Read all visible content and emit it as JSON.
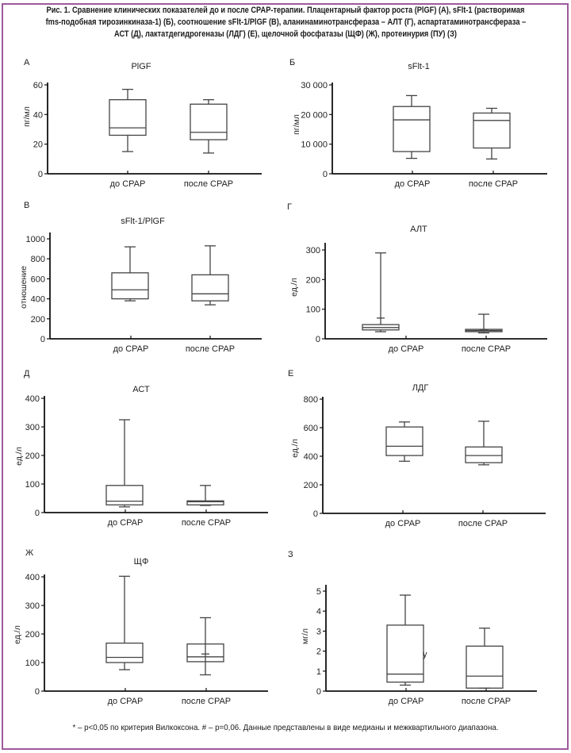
{
  "caption": {
    "lines": [
      "Рис. 1. Сравнение клинических показателей до и после CPAP-терапии. Плацентарный фактор роста (PlGF) (А), sFlt-1 (растворимая",
      "fms-подобная тирозинкиназа-1) (Б), соотношение sFlt-1/PlGF (В), аланинаминотрансфераза – АЛТ (Г), аспартатаминотрансфераза –",
      "АСТ (Д), лактатдегидрогеназы (ЛДГ) (Е), щелочной фосфатазы (ЩФ) (Ж), протеинурия (ПУ) (З)"
    ]
  },
  "footnote": "* – p<0,05 по критерия Вилкоксона. # – p=0,06. Данные представлены в виде медианы и межквартильного диапазона.",
  "colors": {
    "frame": "#9c5a9c",
    "box_stroke": "#444444",
    "axis": "#111111"
  },
  "chart_data": [
    {
      "type": "box",
      "panel": "А",
      "title": "PlGF",
      "ylabel": "пг/мл",
      "categories": [
        "до CPAP",
        "после CPAP"
      ],
      "yticks": [
        0,
        20,
        40,
        60
      ],
      "ytick_labels": [
        "0",
        "20",
        "40",
        "60"
      ],
      "ylim": [
        0,
        60
      ],
      "boxes": [
        {
          "category": "до CPAP",
          "whisker_low": 15,
          "q1": 26,
          "median": 31,
          "q3": 50,
          "whisker_high": 57
        },
        {
          "category": "после CPAP",
          "whisker_low": 14,
          "q1": 23,
          "median": 28,
          "q3": 47,
          "whisker_high": 50
        }
      ]
    },
    {
      "type": "box",
      "panel": "Б",
      "title": "sFlt-1",
      "ylabel": "пг/мл",
      "categories": [
        "до CPAP",
        "после CPAP"
      ],
      "yticks": [
        0,
        10000,
        20000,
        30000
      ],
      "ytick_labels": [
        "0",
        "10 000",
        "20 000",
        "30 000"
      ],
      "ylim": [
        0,
        30000
      ],
      "boxes": [
        {
          "category": "до CPAP",
          "whisker_low": 5200,
          "q1": 7500,
          "median": 18200,
          "q3": 22700,
          "whisker_high": 26400
        },
        {
          "category": "после CPAP",
          "whisker_low": 5000,
          "q1": 8700,
          "median": 18000,
          "q3": 20500,
          "whisker_high": 22100
        }
      ]
    },
    {
      "type": "box",
      "panel": "В",
      "title": "sFlt-1/PlGF",
      "ylabel": "отношение",
      "categories": [
        "до CPAP",
        "после CPAP"
      ],
      "yticks": [
        0,
        200,
        400,
        600,
        800,
        1000
      ],
      "ytick_labels": [
        "0",
        "200",
        "400",
        "600",
        "800",
        "1000"
      ],
      "ylim": [
        0,
        1000
      ],
      "boxes": [
        {
          "category": "до CPAP",
          "whisker_low": 380,
          "q1": 400,
          "median": 490,
          "q3": 660,
          "whisker_high": 920
        },
        {
          "category": "после CPAP",
          "whisker_low": 340,
          "q1": 380,
          "median": 450,
          "q3": 640,
          "whisker_high": 930
        }
      ]
    },
    {
      "type": "box",
      "panel": "Г",
      "title": "АЛТ",
      "ylabel": "ед./л",
      "categories": [
        "до CPAP",
        "после CPAP"
      ],
      "yticks": [
        0,
        100,
        200,
        300
      ],
      "ytick_labels": [
        "0",
        "100",
        "200",
        "300"
      ],
      "ylim": [
        0,
        300
      ],
      "boxes": [
        {
          "category": "до CPAP",
          "whisker_low": 24,
          "q1": 30,
          "median": 38,
          "q3": 48,
          "whisker_high": 290,
          "marker": 70
        },
        {
          "category": "после CPAP",
          "whisker_low": 20,
          "q1": 24,
          "median": 28,
          "q3": 32,
          "whisker_high": 83,
          "marker": 31
        }
      ]
    },
    {
      "type": "box",
      "panel": "Д",
      "title": "АСТ",
      "ylabel": "ед./л",
      "categories": [
        "до CPAP",
        "после CPAP"
      ],
      "yticks": [
        0,
        100,
        200,
        300,
        400
      ],
      "ytick_labels": [
        "0",
        "100",
        "200",
        "300",
        "400"
      ],
      "ylim": [
        0,
        400
      ],
      "boxes": [
        {
          "category": "до CPAP",
          "whisker_low": 20,
          "q1": 27,
          "median": 40,
          "q3": 95,
          "whisker_high": 325
        },
        {
          "category": "после CPAP",
          "whisker_low": 25,
          "q1": 27,
          "median": 38,
          "q3": 41,
          "whisker_high": 95
        }
      ]
    },
    {
      "type": "box",
      "panel": "Е",
      "title": "ЛДГ",
      "ylabel": "ед./л",
      "categories": [
        "до CPAP",
        "после CPAP"
      ],
      "yticks": [
        0,
        200,
        400,
        600,
        800
      ],
      "ytick_labels": [
        "0",
        "200",
        "400",
        "600",
        "800"
      ],
      "ylim": [
        0,
        800
      ],
      "boxes": [
        {
          "category": "до CPAP",
          "whisker_low": 365,
          "q1": 405,
          "median": 470,
          "q3": 605,
          "whisker_high": 640
        },
        {
          "category": "после CPAP",
          "whisker_low": 340,
          "q1": 355,
          "median": 405,
          "q3": 465,
          "whisker_high": 645
        }
      ]
    },
    {
      "type": "box",
      "panel": "Ж",
      "title": "ЩФ",
      "ylabel": "ед./л",
      "categories": [
        "до CPAP",
        "после CPAP"
      ],
      "yticks": [
        0,
        100,
        200,
        300,
        400
      ],
      "ytick_labels": [
        "0",
        "100",
        "200",
        "300",
        "400"
      ],
      "ylim": [
        0,
        400
      ],
      "boxes": [
        {
          "category": "до CPAP",
          "whisker_low": 75,
          "q1": 100,
          "median": 118,
          "q3": 168,
          "whisker_high": 402
        },
        {
          "category": "после CPAP",
          "whisker_low": 57,
          "q1": 103,
          "median": 120,
          "q3": 165,
          "whisker_high": 257,
          "marker": 130,
          "whisker_through_box": true
        }
      ]
    },
    {
      "type": "box",
      "panel": "З",
      "title": "",
      "ylabel": "мг/л",
      "categories": [
        "до CPAP",
        "после CPAP"
      ],
      "yticks": [
        0,
        1,
        2,
        3,
        4,
        5
      ],
      "ytick_labels": [
        "0",
        "1",
        "2",
        "3",
        "4",
        "5"
      ],
      "ylim": [
        0,
        5
      ],
      "boxes": [
        {
          "category": "до CPAP",
          "whisker_low": 0.3,
          "q1": 0.45,
          "median": 0.85,
          "q3": 3.3,
          "whisker_high": 4.8
        },
        {
          "category": "после CPAP",
          "whisker_low": 0.15,
          "q1": 0.15,
          "median": 0.75,
          "q3": 2.25,
          "whisker_high": 3.15
        }
      ],
      "annotation": "у"
    }
  ]
}
